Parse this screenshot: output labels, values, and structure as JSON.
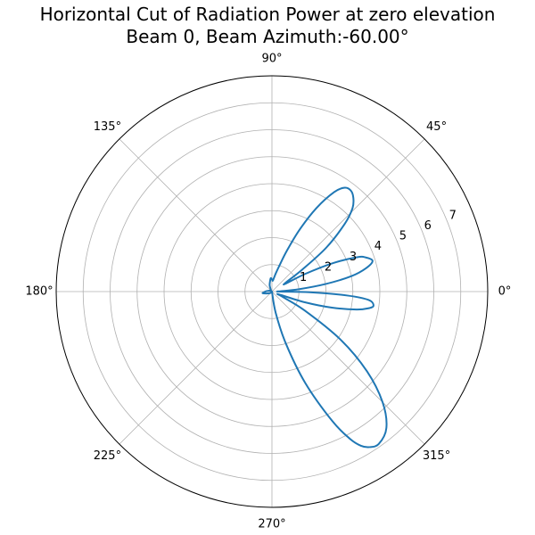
{
  "chart_data": {
    "type": "line",
    "projection": "polar",
    "title": "Horizontal Cut of Radiation Power at zero elevation",
    "subtitle": "Beam 0, Beam Azimuth:-60.00°",
    "angle_ticks": [
      "0°",
      "45°",
      "90°",
      "135°",
      "180°",
      "225°",
      "270°",
      "315°"
    ],
    "radial_ticks": [
      1,
      2,
      3,
      4,
      5,
      6,
      7
    ],
    "rlim": [
      0,
      8
    ],
    "grid": true,
    "line_color": "#1f77b4",
    "series": [
      {
        "angle_deg": [
          -85,
          -80,
          -75,
          -70,
          -65,
          -62,
          -60,
          -58,
          -55,
          -50,
          -45,
          -40,
          -35,
          -30,
          -26,
          -22,
          -18,
          -15,
          -12,
          -10,
          -8,
          -5,
          -3,
          -1,
          0,
          2,
          5,
          8,
          11,
          14,
          17,
          20,
          22,
          25,
          28,
          30,
          33,
          36,
          39,
          43,
          46,
          49,
          52,
          55,
          58,
          62,
          66,
          70,
          74,
          78,
          82,
          86,
          90,
          95,
          100,
          110,
          120,
          140,
          160,
          175,
          180,
          185,
          190,
          200,
          215,
          230,
          250,
          265,
          270
        ],
        "r": [
          0,
          0.8,
          2.0,
          3.6,
          5.3,
          6.2,
          6.6,
          6.8,
          6.9,
          6.6,
          5.8,
          4.6,
          3.1,
          1.4,
          0.4,
          0.3,
          1.3,
          2.3,
          3.2,
          3.6,
          3.8,
          3.6,
          2.8,
          1.4,
          0.3,
          0.3,
          1.0,
          2.0,
          3.0,
          3.6,
          3.9,
          3.7,
          3.4,
          2.5,
          1.4,
          0.6,
          0.6,
          1.4,
          2.6,
          3.7,
          4.3,
          4.6,
          4.75,
          4.7,
          4.35,
          3.5,
          2.5,
          1.6,
          1.0,
          0.7,
          0.5,
          0.4,
          0.45,
          0.5,
          0.4,
          0.25,
          0.1,
          0.05,
          0.1,
          0.2,
          0.25,
          0.3,
          0.35,
          0.2,
          0.1,
          0.05,
          0.02,
          0,
          0
        ]
      }
    ]
  }
}
